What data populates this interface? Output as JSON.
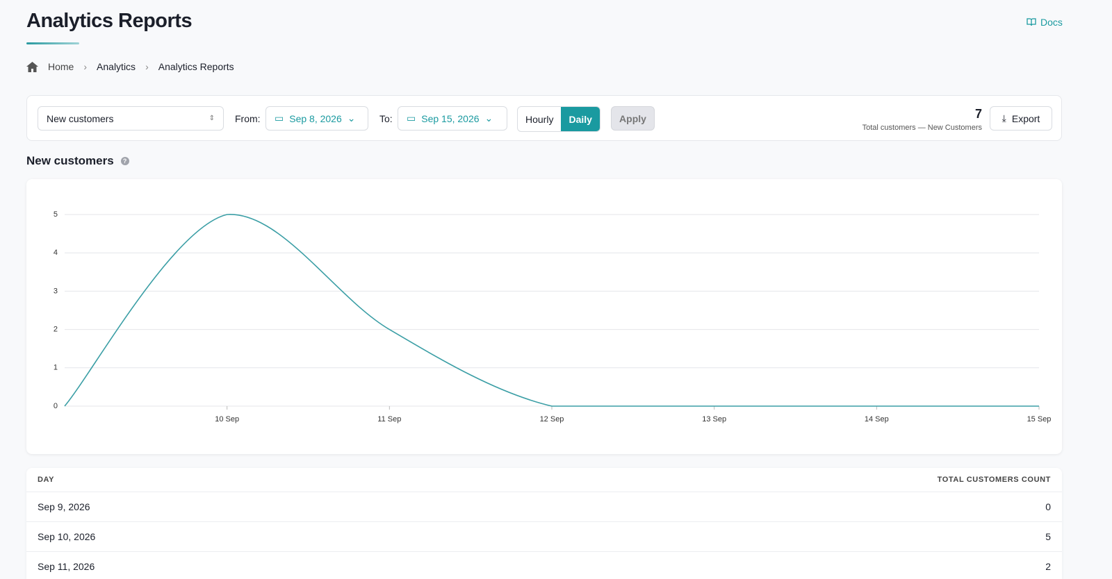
{
  "header": {
    "title": "Analytics Reports",
    "docs": "Docs"
  },
  "breadcrumb": [
    "Home",
    "Analytics",
    "Analytics Reports"
  ],
  "toolbar": {
    "metric": "New customers",
    "from_label": "From:",
    "from": "Sep 8, 2026",
    "to_label": "To:",
    "to": "Sep 15, 2026",
    "granularity": [
      "Hourly",
      "Daily"
    ],
    "apply": "Apply",
    "total": 7,
    "total_label": "Total customers — New Customers",
    "export": "Export"
  },
  "section_title": "New customers",
  "chart_data": {
    "type": "line",
    "categories": [
      null,
      "10 Sep",
      "11 Sep",
      "12 Sep",
      "13 Sep",
      "14 Sep",
      "15 Sep"
    ],
    "series": [
      {
        "name": "New customers",
        "color": "#3a9ea5",
        "values": [
          0,
          5,
          2,
          0,
          0,
          0,
          0
        ]
      }
    ],
    "ylim": [
      0,
      5
    ],
    "yticks": [
      0,
      1,
      2,
      3,
      4,
      5
    ],
    "grid": true
  },
  "table": {
    "columns": [
      "DAY",
      "TOTAL CUSTOMERS COUNT"
    ],
    "rows": [
      [
        "Sep 9, 2026",
        0
      ],
      [
        "Sep 10, 2026",
        5
      ],
      [
        "Sep 11, 2026",
        2
      ]
    ]
  }
}
